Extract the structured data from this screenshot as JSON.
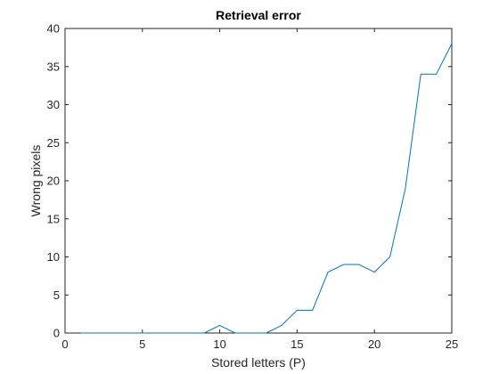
{
  "chart_data": {
    "type": "line",
    "title": "Retrieval error",
    "xlabel": "Stored letters (P)",
    "ylabel": "Wrong pixels",
    "xlim": [
      0,
      25
    ],
    "ylim": [
      0,
      40
    ],
    "xticks": [
      0,
      5,
      10,
      15,
      20,
      25
    ],
    "yticks": [
      0,
      5,
      10,
      15,
      20,
      25,
      30,
      35,
      40
    ],
    "grid": false,
    "series": [
      {
        "color": "#0072BD",
        "x": [
          1,
          2,
          3,
          4,
          5,
          6,
          7,
          8,
          9,
          10,
          11,
          12,
          13,
          14,
          15,
          16,
          17,
          18,
          19,
          20,
          21,
          22,
          23,
          24,
          25
        ],
        "y": [
          0,
          0,
          0,
          0,
          0,
          0,
          0,
          0,
          0,
          1,
          0,
          0,
          0,
          1,
          3,
          3,
          8,
          9,
          9,
          8,
          10,
          19,
          34,
          34,
          38
        ]
      }
    ]
  }
}
